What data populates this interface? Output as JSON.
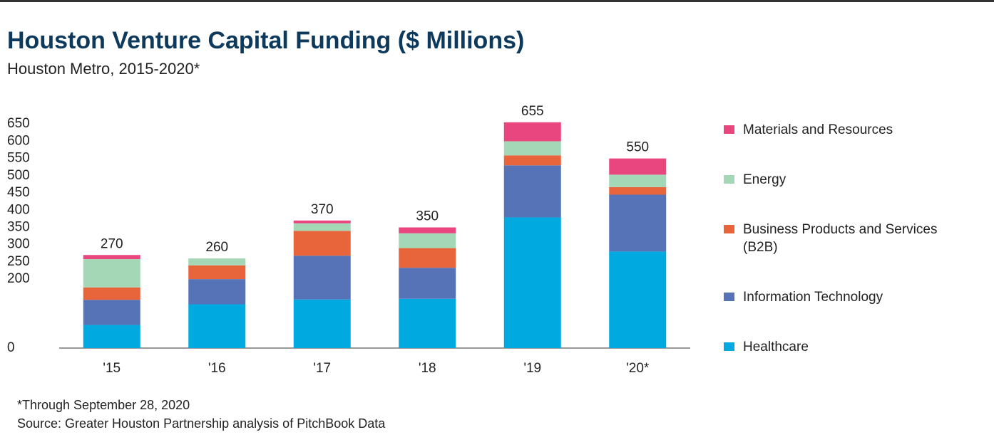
{
  "chart_data": {
    "type": "stacked_bar",
    "title": "Houston Venture Capital Funding ($ Millions)",
    "subtitle": "Houston Metro, 2015-2020*",
    "categories": [
      "'15",
      "'16",
      "'17",
      "'18",
      "'19",
      "'20*"
    ],
    "series": [
      {
        "name": "Healthcare",
        "color": "#00a9e0",
        "values": [
          67,
          127,
          141,
          143,
          379,
          280
        ]
      },
      {
        "name": "Information Technology",
        "color": "#5773b8",
        "values": [
          73,
          73,
          127,
          90,
          151,
          165
        ]
      },
      {
        "name": "Business Products and Services (B2B)",
        "color": "#e8643a",
        "values": [
          36,
          40,
          72,
          57,
          29,
          22
        ]
      },
      {
        "name": "Energy",
        "color": "#a4d7b5",
        "values": [
          82,
          20,
          22,
          43,
          41,
          36
        ]
      },
      {
        "name": "Materials and Resources",
        "color": "#e9457f",
        "values": [
          12,
          0,
          8,
          17,
          55,
          47
        ]
      }
    ],
    "totals": [
      270,
      260,
      370,
      350,
      655,
      550
    ],
    "ylim": [
      0,
      700
    ],
    "yticks": [
      0,
      200,
      250,
      300,
      350,
      400,
      450,
      500,
      550,
      600,
      650
    ],
    "footnote": "*Through September 28, 2020",
    "source": "Source: Greater Houston Partnership analysis of PitchBook Data"
  }
}
